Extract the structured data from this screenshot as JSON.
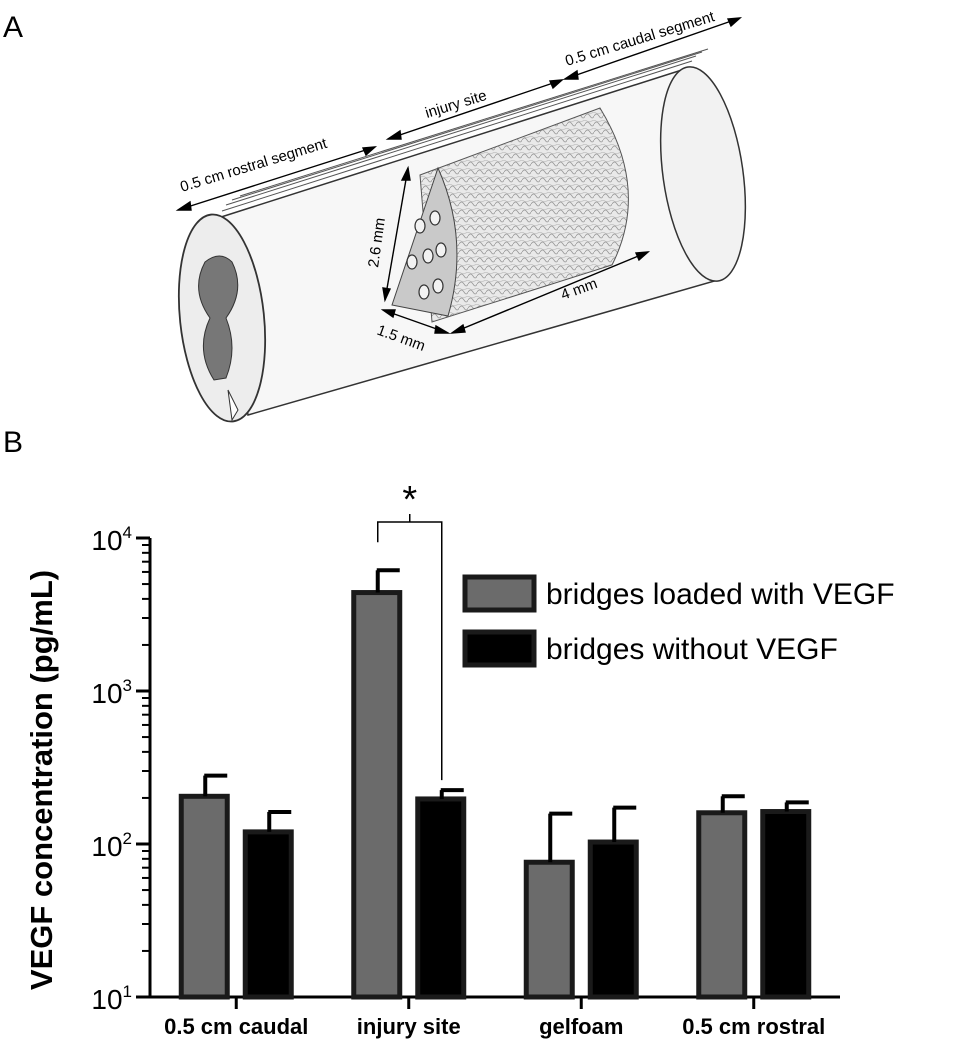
{
  "panel_a": {
    "letter": "A",
    "labels": {
      "rostral": "0.5 cm rostral segment",
      "injury": "injury site",
      "caudal": "0.5 cm caudal segment",
      "height": "2.6 mm",
      "length": "4 mm",
      "width": "1.5 mm"
    }
  },
  "panel_b": {
    "letter": "B"
  },
  "colors": {
    "loaded": "#6b6b6b",
    "without": "#000000",
    "outline": "#1a1a1a"
  },
  "chart_data": {
    "type": "bar",
    "scale": "log",
    "title": "",
    "ylabel": "VEGF concentration (pg/mL)",
    "xlabel": "",
    "ylim": [
      10,
      10000
    ],
    "yticks": [
      {
        "value": 10,
        "base": "10",
        "exp": "1"
      },
      {
        "value": 100,
        "base": "10",
        "exp": "2"
      },
      {
        "value": 1000,
        "base": "10",
        "exp": "3"
      },
      {
        "value": 10000,
        "base": "10",
        "exp": "4"
      }
    ],
    "categories": [
      "0.5 cm caudal",
      "injury site",
      "gelfoam",
      "0.5 cm rostral"
    ],
    "series": [
      {
        "name": "bridges loaded with VEGF",
        "color": "#6b6b6b",
        "values": [
          205,
          4400,
          76,
          160
        ],
        "errors": [
          75,
          1750,
          82,
          45
        ]
      },
      {
        "name": "bridges without VEGF",
        "color": "#000000",
        "values": [
          120,
          197,
          103,
          163
        ],
        "errors": [
          42,
          28,
          70,
          24
        ]
      }
    ],
    "legend_position": "top-right",
    "annotations": [
      {
        "text": "*",
        "between_category": "injury site"
      }
    ]
  }
}
